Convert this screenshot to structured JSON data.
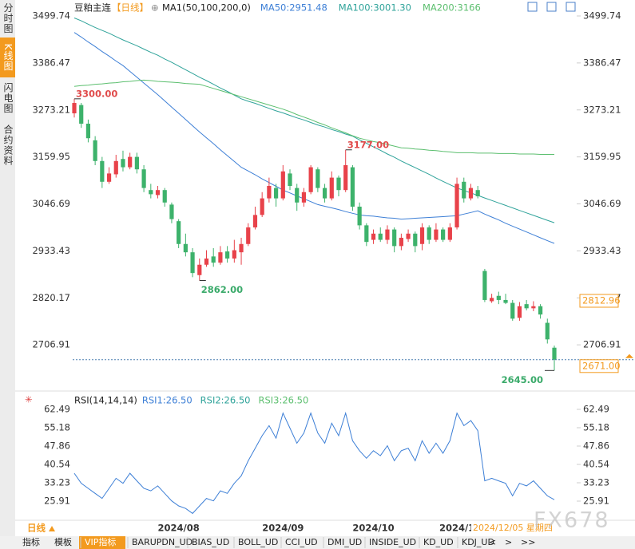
{
  "chart_data": {
    "type": "candlestick",
    "symbol": "豆粕主连",
    "period": "【日线】",
    "ma_title": "MA1(50,100,200,0)",
    "sidebar": [
      "分时图",
      "K线图",
      "闪电图",
      "合约资料"
    ],
    "up_color": "#e8424a",
    "down_color": "#3db26b",
    "ylim": [
      2605.2,
      3528.6
    ],
    "yticks": [
      3499.74,
      3386.47,
      3273.21,
      3159.95,
      3046.69,
      2933.43,
      2820.17,
      2706.91
    ],
    "ohlc": [
      [
        3265,
        3300,
        3255,
        3290
      ],
      [
        3285,
        3290,
        3230,
        3240
      ],
      [
        3240,
        3250,
        3195,
        3205
      ],
      [
        3200,
        3210,
        3140,
        3150
      ],
      [
        3150,
        3160,
        3085,
        3100
      ],
      [
        3100,
        3135,
        3095,
        3120
      ],
      [
        3118,
        3165,
        3110,
        3150
      ],
      [
        3155,
        3175,
        3125,
        3135
      ],
      [
        3135,
        3170,
        3130,
        3160
      ],
      [
        3160,
        3170,
        3120,
        3130
      ],
      [
        3130,
        3140,
        3075,
        3085
      ],
      [
        3080,
        3095,
        3060,
        3070
      ],
      [
        3068,
        3090,
        3060,
        3080
      ],
      [
        3080,
        3085,
        3040,
        3050
      ],
      [
        3045,
        3050,
        3000,
        3010
      ],
      [
        3005,
        3010,
        2940,
        2950
      ],
      [
        2950,
        2975,
        2920,
        2930
      ],
      [
        2930,
        2940,
        2870,
        2880
      ],
      [
        2875,
        2915,
        2862,
        2900
      ],
      [
        2900,
        2935,
        2895,
        2915
      ],
      [
        2920,
        2940,
        2895,
        2905
      ],
      [
        2905,
        2945,
        2900,
        2930
      ],
      [
        2932,
        2945,
        2905,
        2915
      ],
      [
        2915,
        2960,
        2905,
        2935
      ],
      [
        2930,
        2965,
        2900,
        2950
      ],
      [
        2950,
        3000,
        2945,
        2990
      ],
      [
        2990,
        3040,
        2985,
        3020
      ],
      [
        3020,
        3075,
        3015,
        3060
      ],
      [
        3060,
        3110,
        3050,
        3090
      ],
      [
        3085,
        3095,
        3040,
        3060
      ],
      [
        3060,
        3140,
        3055,
        3125
      ],
      [
        3120,
        3130,
        3080,
        3090
      ],
      [
        3085,
        3095,
        3030,
        3050
      ],
      [
        3050,
        3085,
        3040,
        3075
      ],
      [
        3075,
        3140,
        3070,
        3135
      ],
      [
        3130,
        3135,
        3075,
        3085
      ],
      [
        3085,
        3095,
        3050,
        3060
      ],
      [
        3060,
        3125,
        3055,
        3110
      ],
      [
        3110,
        3115,
        3065,
        3080
      ],
      [
        3080,
        3177,
        3075,
        3140
      ],
      [
        3135,
        3140,
        3030,
        3040
      ],
      [
        3040,
        3050,
        2985,
        2995
      ],
      [
        2995,
        3000,
        2945,
        2955
      ],
      [
        2960,
        2985,
        2950,
        2975
      ],
      [
        2975,
        2990,
        2955,
        2960
      ],
      [
        2960,
        2995,
        2950,
        2985
      ],
      [
        2985,
        2990,
        2930,
        2945
      ],
      [
        2945,
        2975,
        2935,
        2965
      ],
      [
        2962,
        2985,
        2955,
        2975
      ],
      [
        2975,
        2980,
        2930,
        2945
      ],
      [
        2950,
        3000,
        2935,
        2990
      ],
      [
        2990,
        2995,
        2950,
        2960
      ],
      [
        2960,
        3000,
        2955,
        2985
      ],
      [
        2985,
        2990,
        2955,
        2960
      ],
      [
        2960,
        3000,
        2955,
        2990
      ],
      [
        2990,
        3110,
        2985,
        3095
      ],
      [
        3100,
        3110,
        3050,
        3060
      ],
      [
        3060,
        3095,
        3055,
        3085
      ],
      [
        3080,
        3090,
        3060,
        3065
      ],
      [
        2885,
        2890,
        2810,
        2815
      ],
      [
        2812,
        2830,
        2808,
        2820
      ],
      [
        2825,
        2835,
        2805,
        2815
      ],
      [
        2815,
        2830,
        2805,
        2808
      ],
      [
        2808,
        2815,
        2765,
        2770
      ],
      [
        2772,
        2810,
        2765,
        2800
      ],
      [
        2805,
        2815,
        2790,
        2795
      ],
      [
        2795,
        2812,
        2788,
        2800
      ],
      [
        2800,
        2805,
        2770,
        2780
      ],
      [
        2760,
        2770,
        2710,
        2720
      ],
      [
        2700,
        2705,
        2645,
        2671
      ]
    ],
    "series": [
      {
        "name": "MA50:2951.48",
        "color": "#3d7fd6",
        "values": [
          3460,
          3449,
          3437,
          3426,
          3414,
          3403,
          3391,
          3380,
          3366,
          3352,
          3338,
          3324,
          3310,
          3295,
          3280,
          3265,
          3250,
          3235,
          3220,
          3206,
          3192,
          3177,
          3163,
          3149,
          3135,
          3126,
          3117,
          3107,
          3098,
          3089,
          3080,
          3073,
          3066,
          3059,
          3052,
          3045,
          3041,
          3037,
          3033,
          3028,
          3024,
          3020,
          3018,
          3017,
          3015,
          3013,
          3012,
          3010,
          3011,
          3012,
          3013,
          3014,
          3015,
          3016,
          3017,
          3018,
          3022,
          3026,
          3030,
          3022,
          3015,
          3008,
          3000,
          2993,
          2986,
          2979,
          2972,
          2965,
          2958,
          2951.48
        ]
      },
      {
        "name": "MA100:3001.30",
        "color": "#2fa39a",
        "values": [
          3495,
          3488,
          3480,
          3472,
          3465,
          3458,
          3450,
          3442,
          3435,
          3428,
          3420,
          3412,
          3405,
          3396,
          3388,
          3379,
          3370,
          3361,
          3352,
          3344,
          3335,
          3326,
          3318,
          3309,
          3300,
          3294,
          3289,
          3283,
          3277,
          3271,
          3266,
          3260,
          3254,
          3249,
          3243,
          3237,
          3232,
          3226,
          3221,
          3215,
          3210,
          3201,
          3193,
          3184,
          3176,
          3167,
          3159,
          3150,
          3142,
          3134,
          3126,
          3118,
          3109,
          3101,
          3093,
          3085,
          3079,
          3073,
          3067,
          3061,
          3055,
          3049,
          3043,
          3037,
          3031,
          3025,
          3019,
          3013,
          3007,
          3001.3
        ]
      },
      {
        "name": "MA200:3166",
        "color": "#5cbf6f",
        "values": [
          3330,
          3332,
          3333,
          3335,
          3336,
          3338,
          3339,
          3341,
          3342,
          3344,
          3345,
          3344,
          3342,
          3341,
          3340,
          3339,
          3337,
          3336,
          3335,
          3330,
          3325,
          3320,
          3315,
          3310,
          3305,
          3300,
          3295,
          3290,
          3285,
          3280,
          3275,
          3269,
          3262,
          3256,
          3250,
          3243,
          3237,
          3230,
          3224,
          3218,
          3211,
          3205,
          3201,
          3197,
          3194,
          3190,
          3186,
          3182,
          3181,
          3179,
          3178,
          3176,
          3175,
          3173,
          3172,
          3170,
          3170,
          3170,
          3169,
          3169,
          3169,
          3168,
          3168,
          3168,
          3167,
          3167,
          3167,
          3166,
          3166,
          3166
        ]
      }
    ],
    "annotations": [
      {
        "value": 3300,
        "label": "3300.00"
      },
      {
        "value": 3177,
        "label": "3177.00"
      },
      {
        "value": 2862,
        "label": "2862.00"
      },
      {
        "value": 2645,
        "label": "2645.00"
      }
    ],
    "price_tags": [
      2812.96,
      {
        "value": 2671,
        "label": "2671.00"
      }
    ],
    "rsi": {
      "title": "RSI(14,14,14)",
      "ylim": [
        19.55,
        67.58
      ],
      "yticks": [
        62.49,
        55.18,
        47.86,
        40.54,
        33.23,
        25.91
      ],
      "series": [
        {
          "name": "RSI1:26.50",
          "color": "#3d7fd6",
          "values": [
            37,
            33,
            31,
            29,
            27,
            31,
            35,
            33,
            37,
            34,
            31,
            30,
            32,
            29,
            26,
            24,
            23,
            21,
            24,
            27,
            26,
            30,
            29,
            33,
            36,
            42,
            47,
            52,
            56,
            51,
            61,
            55,
            49,
            53,
            61,
            53,
            49,
            57,
            52,
            61,
            50,
            46,
            43,
            46,
            44,
            48,
            42,
            46,
            47,
            42,
            50,
            45,
            49,
            45,
            50,
            61,
            56,
            58,
            54,
            34,
            35,
            34,
            33,
            28,
            33,
            32,
            34,
            31,
            28,
            26.5
          ]
        },
        {
          "name": "RSI2:26.50",
          "color": "#2fa39a"
        },
        {
          "name": "RSI3:26.50",
          "color": "#5cbf6f"
        }
      ]
    },
    "period_label": "日线",
    "xticks": [
      {
        "value": 15,
        "label": "2024/08"
      },
      {
        "value": 30,
        "label": "2024/09"
      },
      {
        "value": 43,
        "label": "2024/10"
      },
      {
        "value": 55,
        "label": "2024/1"
      }
    ],
    "crosshair_date": "2024/12/05 星期四",
    "watermark": "FX678",
    "toolbar": [
      "指标",
      "模板",
      "VIP指标",
      "BARUPDN_UD",
      "BIAS_UD",
      "BOLL_UD",
      "CCI_UD",
      "DMI_UD",
      "INSIDE_UD",
      "KD_UD",
      "KDJ_UD",
      "<",
      ">",
      ">>"
    ]
  }
}
